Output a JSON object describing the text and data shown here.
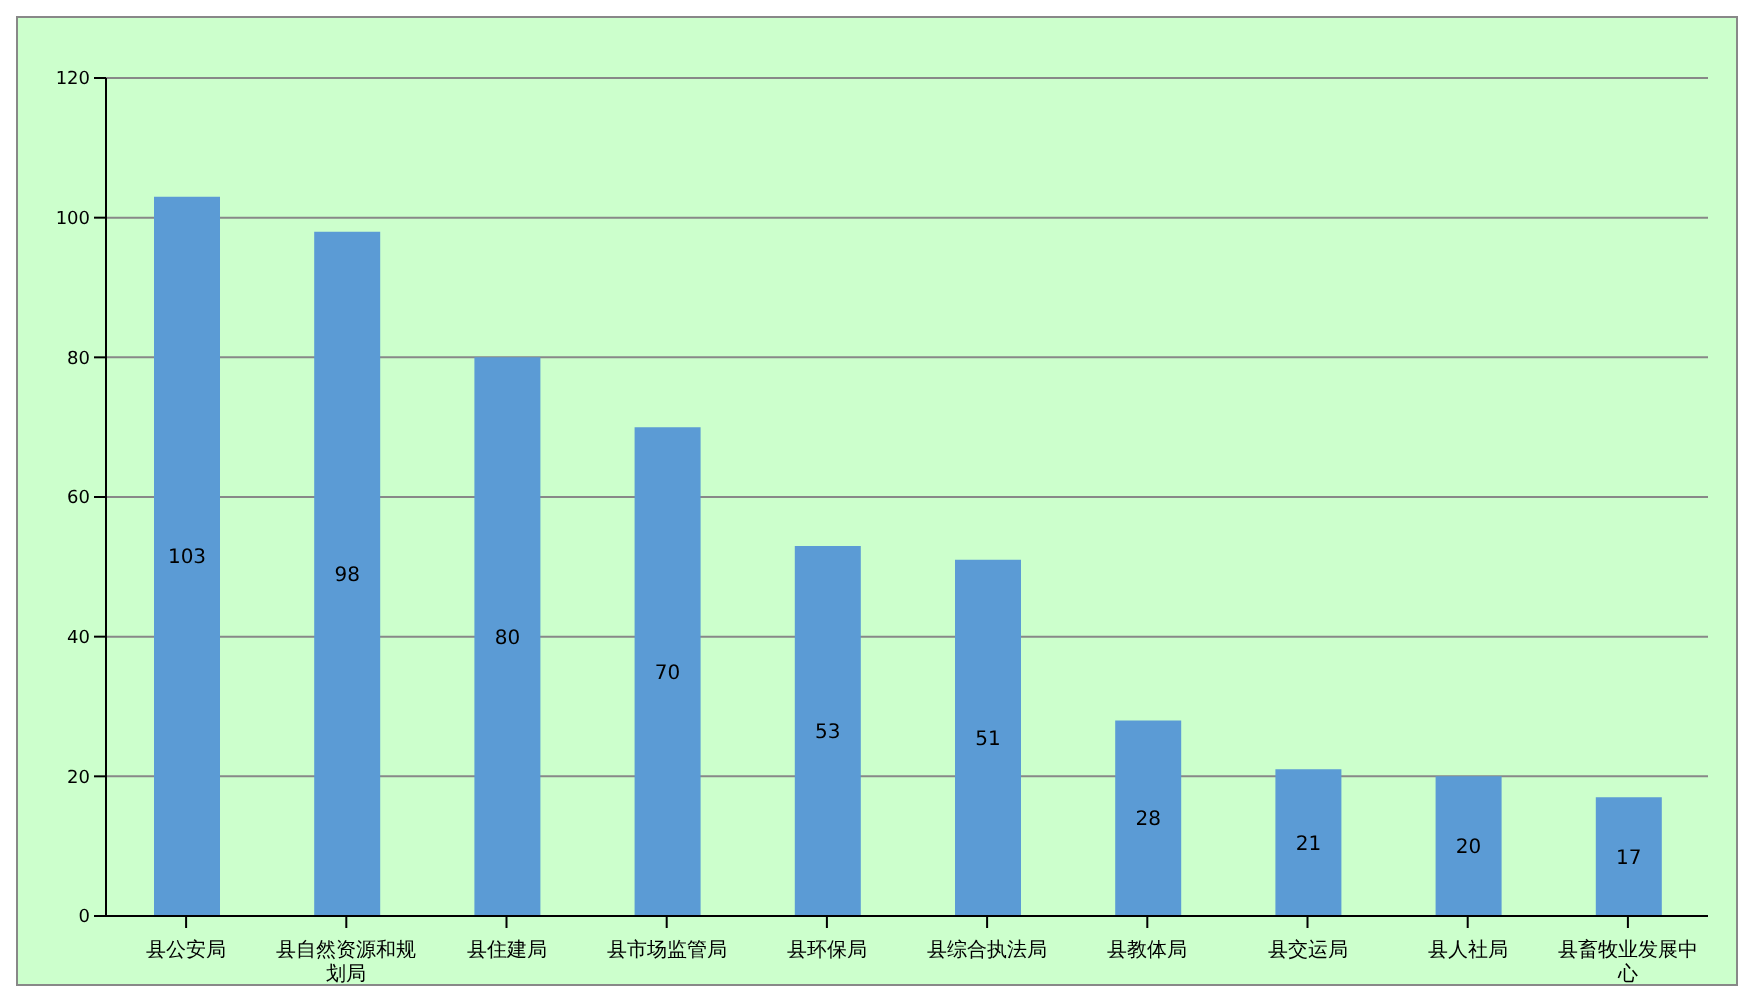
{
  "chart_data": {
    "type": "bar",
    "categories": [
      "县公安局",
      "县自然资源和规划局",
      "县住建局",
      "县市场监管局",
      "县环保局",
      "县综合执法局",
      "县教体局",
      "县交运局",
      "县人社局",
      "县畜牧业发展中心"
    ],
    "values": [
      103,
      98,
      80,
      70,
      53,
      51,
      28,
      21,
      20,
      17
    ],
    "color": "#5b9bd5",
    "ylim": [
      0,
      120
    ],
    "yticks": [
      0,
      20,
      40,
      60,
      80,
      100,
      120
    ],
    "grid": "y",
    "data_labels": true
  }
}
